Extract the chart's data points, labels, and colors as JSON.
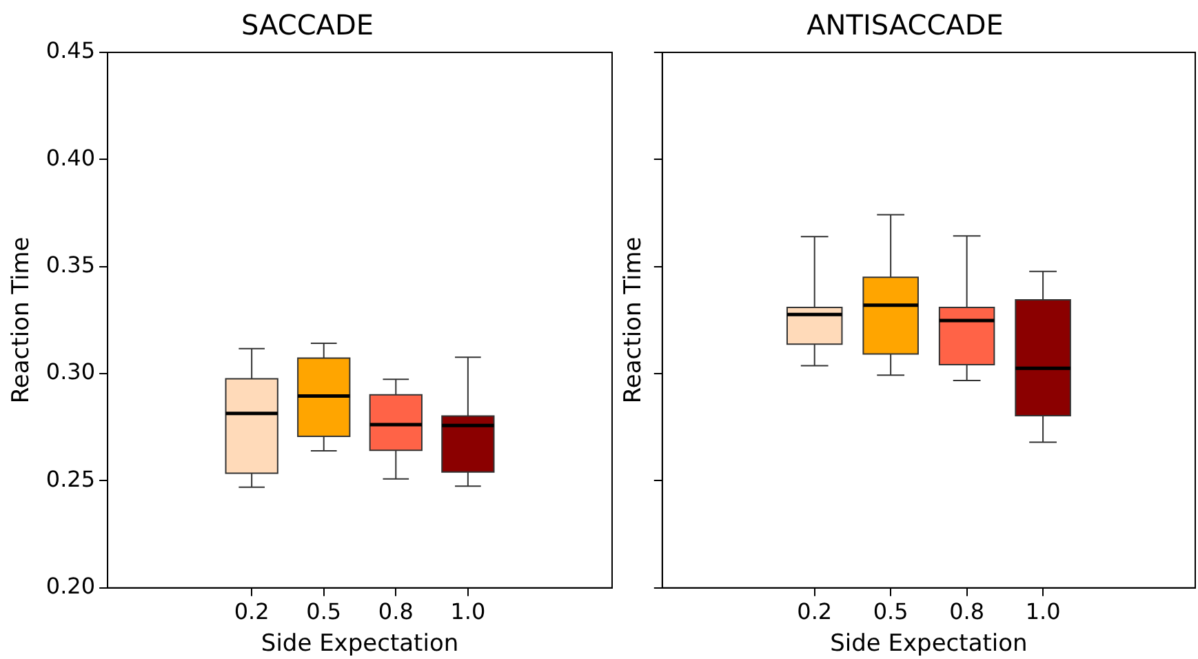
{
  "chart_data": [
    {
      "type": "box",
      "title": "SACCADE",
      "xlabel": "Side Expectation",
      "ylabel": "Reaction Time",
      "categories": [
        "0.2",
        "0.5",
        "0.8",
        "1.0"
      ],
      "colors": [
        "#ffdab9",
        "#ffa500",
        "#ff6347",
        "#8b0000"
      ],
      "boxes": [
        {
          "low": 0.247,
          "q1": 0.2535,
          "median": 0.2814,
          "q3": 0.2976,
          "high": 0.3117
        },
        {
          "low": 0.264,
          "q1": 0.2707,
          "median": 0.2896,
          "q3": 0.3073,
          "high": 0.3142
        },
        {
          "low": 0.2509,
          "q1": 0.2642,
          "median": 0.2762,
          "q3": 0.2901,
          "high": 0.2974
        },
        {
          "low": 0.2475,
          "q1": 0.2541,
          "median": 0.2758,
          "q3": 0.2802,
          "high": 0.3077
        }
      ],
      "ylim": [
        0.2,
        0.45
      ],
      "yticks": [
        {
          "value": 0.2,
          "label": "0.20"
        },
        {
          "value": 0.25,
          "label": "0.25"
        },
        {
          "value": 0.3,
          "label": "0.30"
        },
        {
          "value": 0.35,
          "label": "0.35"
        },
        {
          "value": 0.4,
          "label": "0.40"
        },
        {
          "value": 0.45,
          "label": "0.45"
        }
      ],
      "grid": false,
      "legend": false
    },
    {
      "type": "box",
      "title": "ANTISACCADE",
      "xlabel": "Side Expectation",
      "ylabel": "Reaction Time",
      "categories": [
        "0.2",
        "0.5",
        "0.8",
        "1.0"
      ],
      "colors": [
        "#ffdab9",
        "#ffa500",
        "#ff6347",
        "#8b0000"
      ],
      "boxes": [
        {
          "low": 0.3037,
          "q1": 0.3138,
          "median": 0.3276,
          "q3": 0.3309,
          "high": 0.364
        },
        {
          "low": 0.2993,
          "q1": 0.3092,
          "median": 0.332,
          "q3": 0.345,
          "high": 0.3742
        },
        {
          "low": 0.2968,
          "q1": 0.3042,
          "median": 0.3248,
          "q3": 0.3309,
          "high": 0.3643
        },
        {
          "low": 0.268,
          "q1": 0.2804,
          "median": 0.3025,
          "q3": 0.3345,
          "high": 0.3477
        }
      ],
      "ylim": [
        0.2,
        0.45
      ],
      "yticks": [
        0.2,
        0.25,
        0.3,
        0.35,
        0.4,
        0.45
      ],
      "tick_labels": "x",
      "grid": false,
      "legend": false
    }
  ]
}
